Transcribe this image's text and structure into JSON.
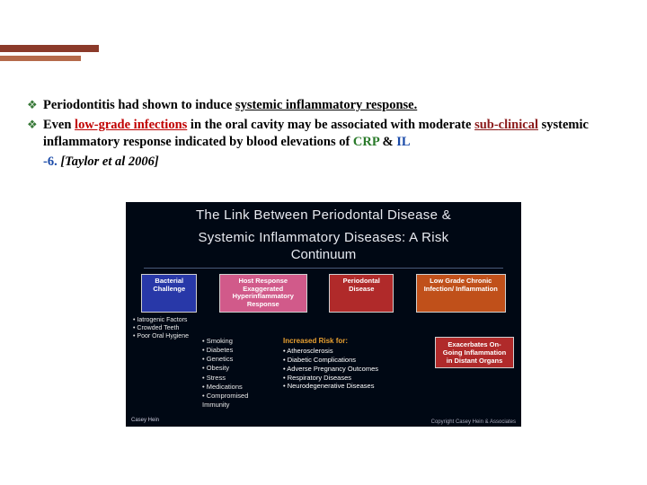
{
  "accent": {
    "bar1_color": "#8b3a2a",
    "bar2_color": "#b56a4a"
  },
  "bullets": [
    {
      "pre": "Periodontitis had shown to induce ",
      "emph": "systemic inflammatory response.",
      "emph_class": "underline"
    }
  ],
  "b2": {
    "t1": "Even ",
    "low_grade": "low-grade infections",
    "t2": " in the oral cavity may be associated with moderate ",
    "sub": "sub-",
    "t3": "clinical systemic inflammatory response indicated by blood elevations of ",
    "crp": "CRP",
    "amp": " & ",
    "il": "IL",
    "il6": "-6. ",
    "cite": "[Taylor et al 2006]"
  },
  "fig": {
    "title_l1": "The Link Between Periodontal Disease &",
    "title_l2": "Systemic Inflammatory Diseases: A Risk",
    "title_l3": "Continuum",
    "box1": "Bacterial Challenge",
    "box2": "Host Response Exaggerated Hyperinflammatory Response",
    "box3": "Periodontal Disease",
    "box4": "Low Grade Chronic Infection/ Inflammation",
    "left": [
      "Iatrogenic Factors",
      "Crowded Teeth",
      "Poor Oral Hygiene"
    ],
    "col": [
      "Smoking",
      "Diabetes",
      "Genetics",
      "Obesity",
      "Stress",
      "Medications",
      "Compromised Immunity"
    ],
    "risk_title": "Increased Risk for:",
    "risks": [
      "Atherosclerosis",
      "Diabetic Complications",
      "Adverse Pregnancy Outcomes",
      "Respiratory Diseases",
      "Neurodegenerative Diseases"
    ],
    "exac": "Exacerbates On-Going Inflammation in Distant Organs",
    "copyright": "Copyright Casey Hein & Associates",
    "logo": "Casey Hein"
  }
}
